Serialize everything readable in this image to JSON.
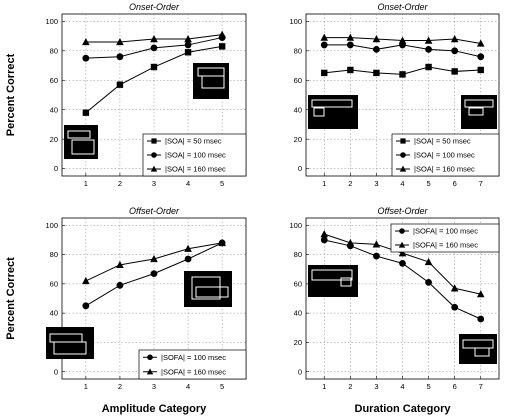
{
  "chart_data": [
    {
      "type": "line",
      "panel": "top-left",
      "title": "Onset-Order",
      "xlabel": "",
      "ylabel": "Percent Correct",
      "categories": [
        "1",
        "2",
        "3",
        "4",
        "5"
      ],
      "xlim": [
        0.3,
        5.7
      ],
      "ylim": [
        -5,
        105
      ],
      "yticks": [
        "0",
        "20",
        "40",
        "60",
        "80",
        "100"
      ],
      "grid": true,
      "legend": "bottom-right",
      "series": [
        {
          "name": "|SOA| = 50 msec",
          "marker": "square",
          "values": [
            38,
            57,
            69,
            79,
            83
          ]
        },
        {
          "name": "|SOA| = 100 msec",
          "marker": "circle",
          "values": [
            75,
            76,
            82,
            84,
            89
          ]
        },
        {
          "name": "|SOA| = 160 msec",
          "marker": "triangle",
          "values": [
            86,
            86,
            88,
            88,
            91
          ]
        }
      ]
    },
    {
      "type": "line",
      "panel": "top-right",
      "title": "Onset-Order",
      "xlabel": "",
      "ylabel": "",
      "categories": [
        "1",
        "2",
        "3",
        "4",
        "5",
        "6",
        "7"
      ],
      "xlim": [
        0.3,
        7.7
      ],
      "ylim": [
        -5,
        105
      ],
      "yticks": [
        "0",
        "20",
        "40",
        "60",
        "80",
        "100"
      ],
      "grid": true,
      "legend": "bottom-right",
      "series": [
        {
          "name": "|SOA| = 50 msec",
          "marker": "square",
          "values": [
            65,
            67,
            65,
            64,
            69,
            66,
            67
          ]
        },
        {
          "name": "|SOA| = 100 msec",
          "marker": "circle",
          "values": [
            84,
            84,
            81,
            84,
            81,
            80,
            76
          ]
        },
        {
          "name": "|SOA| = 160 msec",
          "marker": "triangle",
          "values": [
            89,
            89,
            88,
            87,
            87,
            88,
            85
          ]
        }
      ]
    },
    {
      "type": "line",
      "panel": "bottom-left",
      "title": "Offset-Order",
      "xlabel": "Amplitude Category",
      "ylabel": "Percent Correct",
      "categories": [
        "1",
        "2",
        "3",
        "4",
        "5"
      ],
      "xlim": [
        0.3,
        5.7
      ],
      "ylim": [
        -5,
        105
      ],
      "yticks": [
        "0",
        "20",
        "40",
        "60",
        "80",
        "100"
      ],
      "grid": true,
      "legend": "bottom-right",
      "series": [
        {
          "name": "|SOFA| = 100 msec",
          "marker": "circle",
          "values": [
            45,
            59,
            67,
            77,
            88
          ]
        },
        {
          "name": "|SOFA| = 160 msec",
          "marker": "triangle",
          "values": [
            62,
            73,
            77,
            84,
            88
          ]
        }
      ]
    },
    {
      "type": "line",
      "panel": "bottom-right",
      "title": "Offset-Order",
      "xlabel": "Duration Category",
      "ylabel": "",
      "categories": [
        "1",
        "2",
        "3",
        "4",
        "5",
        "6",
        "7"
      ],
      "xlim": [
        0.3,
        7.7
      ],
      "ylim": [
        -5,
        105
      ],
      "yticks": [
        "0",
        "20",
        "40",
        "60",
        "80",
        "100"
      ],
      "grid": true,
      "legend": "top-right",
      "series": [
        {
          "name": "|SOFA| = 100 msec",
          "marker": "circle",
          "values": [
            90,
            86,
            79,
            74,
            61,
            44,
            36
          ]
        },
        {
          "name": "|SOFA| = 160 msec",
          "marker": "triangle",
          "values": [
            94,
            88,
            87,
            81,
            75,
            57,
            53
          ]
        }
      ]
    }
  ]
}
